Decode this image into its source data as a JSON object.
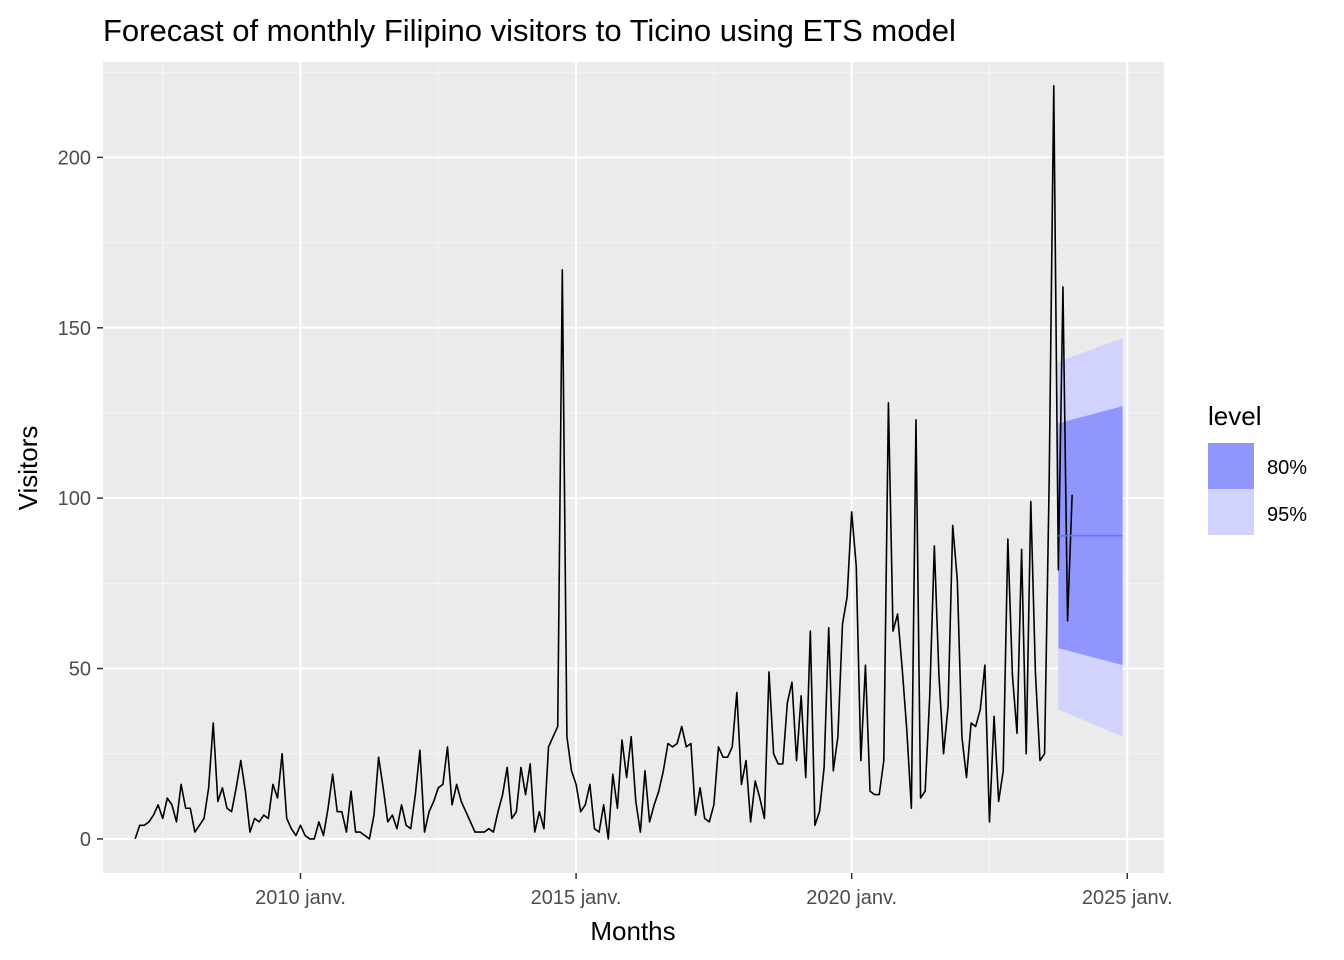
{
  "chart_data": {
    "type": "line",
    "title": "Forecast of monthly Filipino visitors to Ticino using ETS model",
    "xlabel": "Months",
    "ylabel": "Visitors",
    "x_range": [
      "2006-06",
      "2025-09"
    ],
    "ylim": [
      -10,
      228
    ],
    "x_ticks": [
      {
        "value": "2010-01",
        "label": "2010 janv."
      },
      {
        "value": "2015-01",
        "label": "2015 janv."
      },
      {
        "value": "2020-01",
        "label": "2020 janv."
      },
      {
        "value": "2025-01",
        "label": "2025 janv."
      }
    ],
    "y_ticks": [
      0,
      50,
      100,
      150,
      200
    ],
    "grid": true,
    "legend": {
      "title": "level",
      "position": "right",
      "entries": [
        "80%",
        "95%"
      ]
    },
    "series": [
      {
        "kind": "observed",
        "color": "#000000",
        "start": "2007-01",
        "frequency": "monthly",
        "values": [
          0,
          4,
          4,
          5,
          7,
          10,
          6,
          12,
          10,
          5,
          16,
          9,
          9,
          2,
          4,
          6,
          15,
          34,
          11,
          15,
          9,
          8,
          15,
          23,
          14,
          2,
          6,
          5,
          7,
          6,
          16,
          12,
          25,
          6,
          3,
          1,
          4,
          1,
          0,
          0,
          5,
          1,
          9,
          19,
          8,
          8,
          2,
          14,
          2,
          2,
          1,
          0,
          7,
          24,
          15,
          5,
          7,
          3,
          10,
          4,
          3,
          13,
          26,
          2,
          8,
          11,
          15,
          16,
          27,
          10,
          16,
          11,
          8,
          5,
          2,
          2,
          2,
          3,
          2,
          8,
          13,
          21,
          6,
          8,
          21,
          13,
          22,
          2,
          8,
          3,
          27,
          30,
          33,
          167,
          30,
          20,
          16,
          8,
          10,
          16,
          3,
          2,
          10,
          0,
          19,
          9,
          29,
          18,
          30,
          11,
          2,
          20,
          5,
          10,
          14,
          20,
          28,
          27,
          28,
          33,
          27,
          28,
          7,
          15,
          6,
          5,
          10,
          27,
          24,
          24,
          27,
          43,
          16,
          23,
          5,
          17,
          12,
          6,
          49,
          25,
          22,
          22,
          40,
          46,
          23,
          42,
          18,
          61,
          4,
          8,
          21,
          62,
          20,
          30,
          63,
          71,
          96,
          80,
          23,
          51,
          14,
          13,
          13,
          23,
          128,
          61,
          66,
          50,
          32,
          9,
          123,
          12,
          14,
          42,
          86,
          48,
          25,
          39,
          92,
          76,
          30,
          18,
          34,
          33,
          38,
          51,
          5,
          36,
          11,
          20,
          88,
          48,
          31,
          85,
          25,
          99,
          49,
          23,
          25,
          105,
          221,
          79,
          162,
          64,
          101
        ]
      }
    ],
    "forecast": {
      "start": "2023-10",
      "end": "2024-12",
      "mean": 89,
      "mean_color": "#5a7bff",
      "bands": [
        {
          "level": "95%",
          "color": "#d2d2ff",
          "lower_start": 38,
          "lower_end": 30,
          "upper_start": 140,
          "upper_end": 147
        },
        {
          "level": "80%",
          "color": "#9196ff",
          "lower_start": 56,
          "lower_end": 51,
          "upper_start": 122,
          "upper_end": 127
        }
      ]
    },
    "colors": {
      "panel": "#ebebeb",
      "grid_major": "#ffffff",
      "grid_minor": "#f5f5f5"
    }
  }
}
